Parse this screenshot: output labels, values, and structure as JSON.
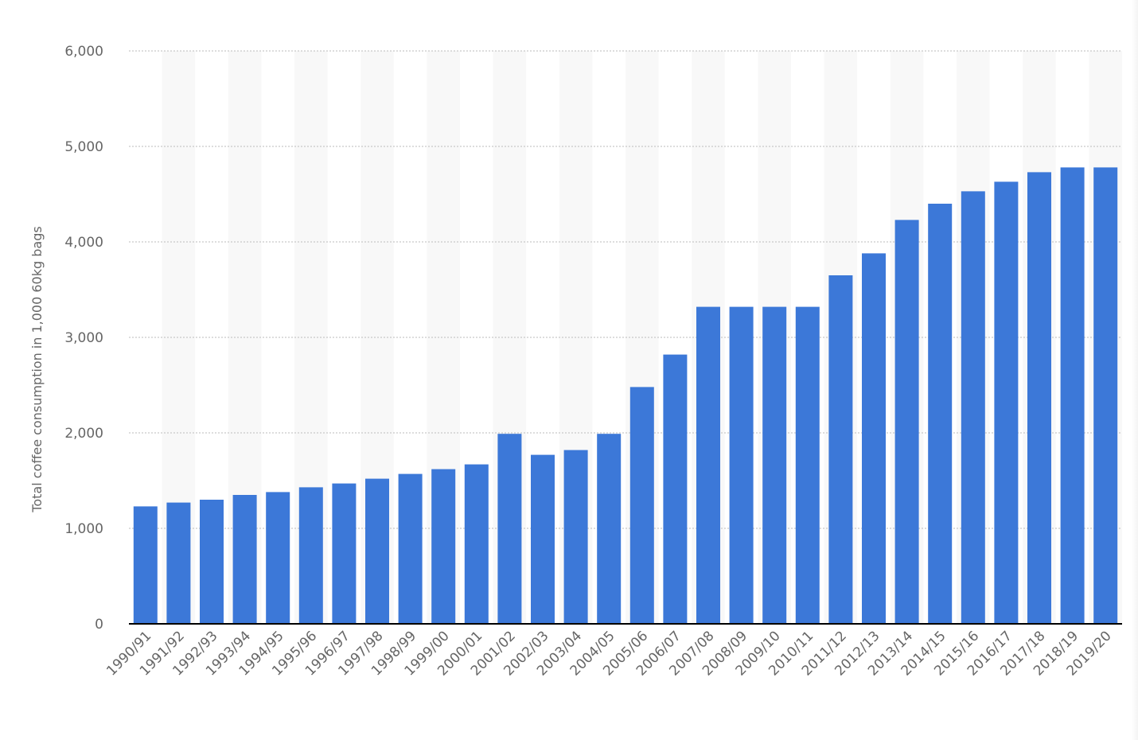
{
  "chart_data": {
    "type": "bar",
    "title": "",
    "xlabel": "",
    "ylabel": "Total coffee consumption in 1,000 60kg bags",
    "ylim": [
      0,
      6000
    ],
    "yticks": [
      0,
      1000,
      2000,
      3000,
      4000,
      5000,
      6000
    ],
    "ytick_labels": [
      "0",
      "1,000",
      "2,000",
      "3,000",
      "4,000",
      "5,000",
      "6,000"
    ],
    "grid": true,
    "legend": "none",
    "categories": [
      "1990/91",
      "1991/92",
      "1992/93",
      "1993/94",
      "1994/95",
      "1995/96",
      "1996/97",
      "1997/98",
      "1998/99",
      "1999/00",
      "2000/01",
      "2001/02",
      "2002/03",
      "2003/04",
      "2004/05",
      "2005/06",
      "2006/07",
      "2007/08",
      "2008/09",
      "2009/10",
      "2010/11",
      "2011/12",
      "2012/13",
      "2013/14",
      "2014/15",
      "2015/16",
      "2016/17",
      "2017/18",
      "2018/19",
      "2019/20"
    ],
    "values": [
      1230,
      1270,
      1300,
      1350,
      1380,
      1430,
      1470,
      1520,
      1570,
      1620,
      1670,
      1990,
      1770,
      1820,
      1990,
      2480,
      2820,
      3320,
      3320,
      3320,
      3320,
      3650,
      3880,
      4230,
      4400,
      4530,
      4630,
      4730,
      4780,
      4780
    ]
  },
  "colors": {
    "bar": "#3c78d8",
    "grid": "#bbbbbb",
    "axis": "#000000",
    "tick_text": "#666666",
    "band": "#f8f8f8"
  }
}
